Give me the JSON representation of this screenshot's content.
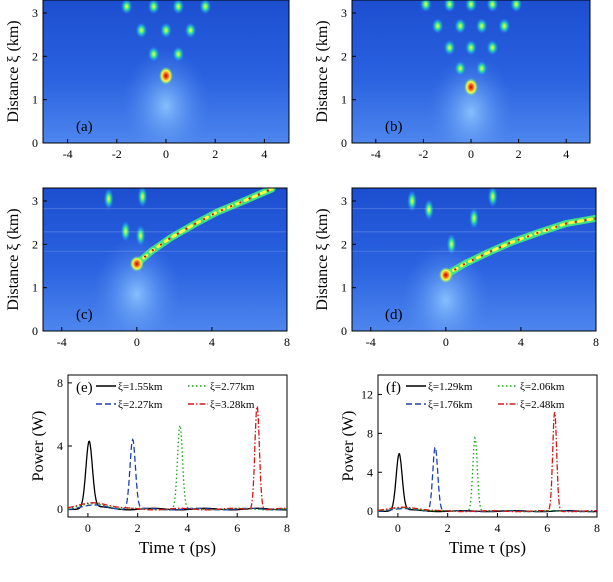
{
  "chart_data": [
    {
      "panel": "(a)",
      "type": "heatmap",
      "xlabel": "",
      "ylabel": "Distance ξ (km)",
      "xlim": [
        -5,
        5
      ],
      "ylim": [
        0,
        3.3
      ],
      "xticks": [
        -4,
        -2,
        0,
        2,
        4
      ],
      "yticks": [
        0,
        1,
        2,
        3
      ],
      "hotspots": [
        {
          "x": 0,
          "y": 1.55,
          "peak": true
        },
        {
          "x": -0.5,
          "y": 2.05
        },
        {
          "x": 0.5,
          "y": 2.05
        },
        {
          "x": -1.0,
          "y": 2.6
        },
        {
          "x": 0,
          "y": 2.6
        },
        {
          "x": 1.0,
          "y": 2.6
        },
        {
          "x": -1.6,
          "y": 3.15
        },
        {
          "x": -0.5,
          "y": 3.15
        },
        {
          "x": 0.5,
          "y": 3.15
        },
        {
          "x": 1.6,
          "y": 3.15
        }
      ]
    },
    {
      "panel": "(b)",
      "type": "heatmap",
      "xlabel": "",
      "ylabel": "Distance ξ (km)",
      "xlim": [
        -5,
        5
      ],
      "ylim": [
        0,
        3.3
      ],
      "xticks": [
        -4,
        -2,
        0,
        2,
        4
      ],
      "yticks": [
        0,
        1,
        2,
        3
      ],
      "hotspots": [
        {
          "x": 0,
          "y": 1.29,
          "peak": true
        },
        {
          "x": -0.45,
          "y": 1.72
        },
        {
          "x": 0.45,
          "y": 1.72
        },
        {
          "x": -0.9,
          "y": 2.2
        },
        {
          "x": 0,
          "y": 2.2
        },
        {
          "x": 0.9,
          "y": 2.2
        },
        {
          "x": -1.4,
          "y": 2.7
        },
        {
          "x": -0.45,
          "y": 2.7
        },
        {
          "x": 0.45,
          "y": 2.7
        },
        {
          "x": 1.4,
          "y": 2.7
        },
        {
          "x": -1.9,
          "y": 3.2
        },
        {
          "x": -0.9,
          "y": 3.2
        },
        {
          "x": 0,
          "y": 3.2
        },
        {
          "x": 0.9,
          "y": 3.2
        },
        {
          "x": 1.9,
          "y": 3.2
        }
      ]
    },
    {
      "panel": "(c)",
      "type": "heatmap",
      "xlabel": "",
      "ylabel": "Distance ξ (km)",
      "xlim": [
        -5,
        8
      ],
      "ylim": [
        0,
        3.3
      ],
      "xticks": [
        -4,
        0,
        4,
        8
      ],
      "yticks": [
        0,
        1,
        2,
        3
      ],
      "origin": {
        "x": 0,
        "y": 1.55
      },
      "trajectory": [
        {
          "x": 0,
          "y": 1.55
        },
        {
          "x": 0.8,
          "y": 1.85
        },
        {
          "x": 1.8,
          "y": 2.15
        },
        {
          "x": 3.0,
          "y": 2.45
        },
        {
          "x": 4.3,
          "y": 2.75
        },
        {
          "x": 5.7,
          "y": 3.0
        },
        {
          "x": 7.2,
          "y": 3.28
        }
      ],
      "side_branches": [
        {
          "x": 0.2,
          "y": 2.2
        },
        {
          "x": -0.6,
          "y": 2.3
        },
        {
          "x": 0.3,
          "y": 3.1
        },
        {
          "x": -1.5,
          "y": 3.05
        }
      ]
    },
    {
      "panel": "(d)",
      "type": "heatmap",
      "xlabel": "",
      "ylabel": "Distance ξ (km)",
      "xlim": [
        -5,
        8
      ],
      "ylim": [
        0,
        3.3
      ],
      "xticks": [
        -4,
        0,
        4,
        8
      ],
      "yticks": [
        0,
        1,
        2,
        3
      ],
      "origin": {
        "x": 0,
        "y": 1.29
      },
      "trajectory": [
        {
          "x": 0,
          "y": 1.29
        },
        {
          "x": 1.0,
          "y": 1.55
        },
        {
          "x": 2.2,
          "y": 1.8
        },
        {
          "x": 3.5,
          "y": 2.05
        },
        {
          "x": 5.0,
          "y": 2.28
        },
        {
          "x": 6.4,
          "y": 2.48
        },
        {
          "x": 8.0,
          "y": 2.6
        }
      ],
      "side_branches": [
        {
          "x": 0.3,
          "y": 2.0
        },
        {
          "x": 1.5,
          "y": 2.6
        },
        {
          "x": 2.5,
          "y": 3.1
        },
        {
          "x": -0.9,
          "y": 2.8
        },
        {
          "x": -1.8,
          "y": 3.0
        }
      ]
    },
    {
      "panel": "(e)",
      "type": "line",
      "xlabel": "Time τ (ps)",
      "ylabel": "Power (W)",
      "xlim": [
        -0.8,
        8
      ],
      "ylim": [
        -0.5,
        8.5
      ],
      "xticks": [
        0,
        2,
        4,
        6,
        8
      ],
      "yticks": [
        0,
        4,
        8
      ],
      "series": [
        {
          "name": "ξ=1.55km",
          "color": "#000000",
          "dash": "solid",
          "center": 0.05,
          "peak": 4.2,
          "width": 0.13
        },
        {
          "name": "ξ=2.27km",
          "color": "#1f3fb0",
          "dash": "dashed",
          "center": 1.8,
          "peak": 4.4,
          "width": 0.11
        },
        {
          "name": "ξ=2.77km",
          "color": "#18a018",
          "dash": "dotted",
          "center": 3.7,
          "peak": 5.3,
          "width": 0.1
        },
        {
          "name": "ξ=3.28km",
          "color": "#d11a1a",
          "dash": "dashdot",
          "center": 6.8,
          "peak": 6.6,
          "width": 0.09
        }
      ]
    },
    {
      "panel": "(f)",
      "type": "line",
      "xlabel": "Time τ (ps)",
      "ylabel": "Power (W)",
      "xlim": [
        -0.8,
        8
      ],
      "ylim": [
        -0.6,
        14
      ],
      "xticks": [
        0,
        2,
        4,
        6,
        8
      ],
      "yticks": [
        0,
        4,
        8,
        12
      ],
      "series": [
        {
          "name": "ξ=1.29km",
          "color": "#000000",
          "dash": "solid",
          "center": 0.05,
          "peak": 5.8,
          "width": 0.12
        },
        {
          "name": "ξ=1.76km",
          "color": "#1f3fb0",
          "dash": "dashed",
          "center": 1.5,
          "peak": 6.6,
          "width": 0.1
        },
        {
          "name": "ξ=2.06km",
          "color": "#18a018",
          "dash": "dotted",
          "center": 3.1,
          "peak": 7.6,
          "width": 0.09
        },
        {
          "name": "ξ=2.48km",
          "color": "#d11a1a",
          "dash": "dashdot",
          "center": 6.3,
          "peak": 10.2,
          "width": 0.08
        }
      ]
    }
  ]
}
